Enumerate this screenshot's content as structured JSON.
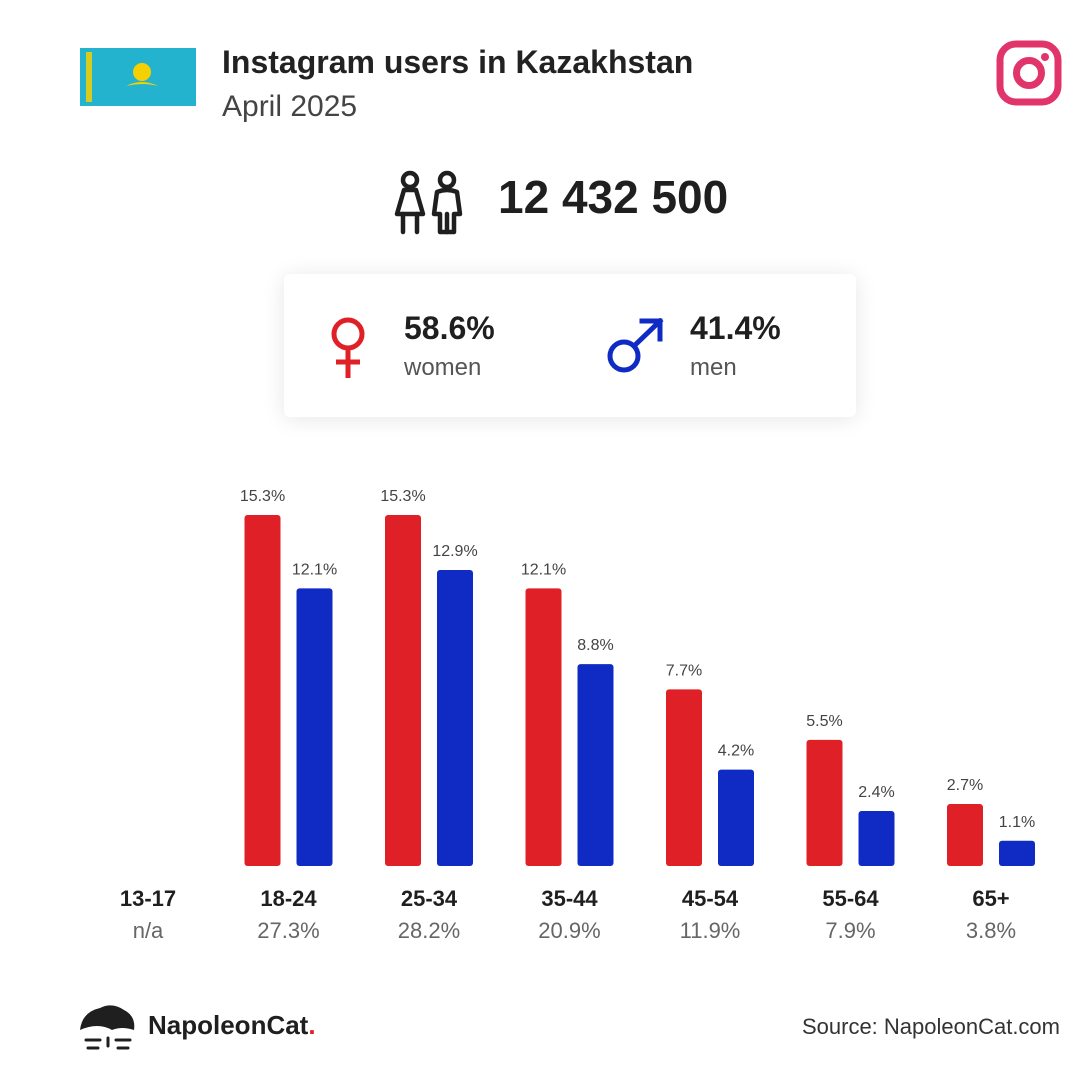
{
  "header": {
    "title": "Instagram users in Kazakhstan",
    "subtitle": "April 2025"
  },
  "total_users": "12 432 500",
  "gender": {
    "women_pct": "58.6%",
    "women_label": "women",
    "men_pct": "41.4%",
    "men_label": "men"
  },
  "colors": {
    "women": "#e02027",
    "men": "#0f2bc4",
    "flag_blue": "#23b3cf",
    "flag_gold": "#f6d000",
    "instagram": "#e0346b"
  },
  "chart_data": {
    "type": "bar",
    "categories": [
      "13-17",
      "18-24",
      "25-34",
      "35-44",
      "45-54",
      "55-64",
      "65+"
    ],
    "totals": [
      "n/a",
      "27.3%",
      "28.2%",
      "20.9%",
      "11.9%",
      "7.9%",
      "3.8%"
    ],
    "series": [
      {
        "name": "women",
        "values": [
          null,
          15.3,
          15.3,
          12.1,
          7.7,
          5.5,
          2.7
        ],
        "labels": [
          "",
          "15.3%",
          "15.3%",
          "12.1%",
          "7.7%",
          "5.5%",
          "2.7%"
        ]
      },
      {
        "name": "men",
        "values": [
          null,
          12.1,
          12.9,
          8.8,
          4.2,
          2.4,
          1.1
        ],
        "labels": [
          "",
          "12.1%",
          "12.9%",
          "8.8%",
          "4.2%",
          "2.4%",
          "1.1%"
        ]
      }
    ],
    "ylim": [
      0,
      15.3
    ],
    "grid": false
  },
  "footer": {
    "brand_name": "NapoleonCat",
    "brand_dot": ".",
    "source": "Source: NapoleonCat.com"
  }
}
